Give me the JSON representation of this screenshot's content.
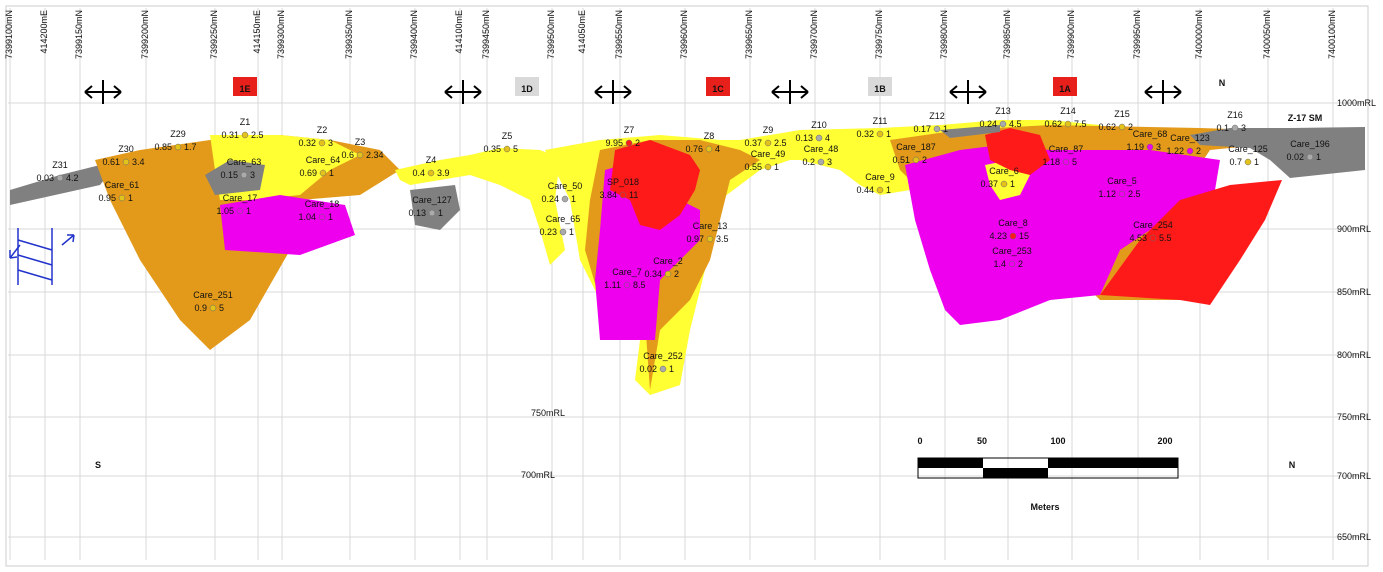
{
  "top_grid_labels": [
    "7399100mN",
    "414200mE",
    "7399150mN",
    "7399200mN",
    "7399250mN",
    "414150mE",
    "7399300mN",
    "7399350mN",
    "7399400mN",
    "414100mE",
    "7399450mN",
    "7399500mN",
    "414050mE",
    "7399550mN",
    "7399600mN",
    "7399650mN",
    "7399700mN",
    "7399750mN",
    "7399800mN",
    "7399850mN",
    "7399900mN",
    "7399950mN",
    "7400000mN",
    "7400050mN",
    "7400100mN"
  ],
  "zones": [
    "1E",
    "1D",
    "1C",
    "1B",
    "1A"
  ],
  "north_label": "N",
  "section_label": "Z-17 SM",
  "holes": [
    {
      "name": "Z31",
      "grade": 0.03,
      "width": 4.2
    },
    {
      "name": "Z30",
      "grade": 0.61,
      "width": 3.4
    },
    {
      "name": "Z29",
      "grade": 0.85,
      "width": 1.7
    },
    {
      "name": "Z1",
      "grade": 0.31,
      "width": 2.5
    },
    {
      "name": "Z2",
      "grade": 0.32,
      "width": 3
    },
    {
      "name": "Z3",
      "grade": 0.6,
      "width": 2.34
    },
    {
      "name": "Z4",
      "grade": 0.4,
      "width": 3.9
    },
    {
      "name": "Z5",
      "grade": 0.35,
      "width": 5
    },
    {
      "name": "Care_61",
      "grade": 0.95,
      "width": 1
    },
    {
      "name": "Care_63",
      "grade": 0.15,
      "width": 3
    },
    {
      "name": "Care_64",
      "grade": 0.69,
      "width": 1
    },
    {
      "name": "Care_17",
      "grade": 1.05,
      "width": 1
    },
    {
      "name": "Care_18",
      "grade": 1.04,
      "width": 1
    },
    {
      "name": "Care_127",
      "grade": 0.13,
      "width": 1
    },
    {
      "name": "Care_251",
      "grade": 0.9,
      "width": 5
    },
    {
      "name": "Care_50",
      "grade": 0.24,
      "width": 1
    },
    {
      "name": "Care_65",
      "grade": 0.23,
      "width": 1
    },
    {
      "name": "Care_252",
      "grade": 0.02,
      "width": 1
    },
    {
      "name": "Care_7",
      "grade": 1.11,
      "width": 8.5
    },
    {
      "name": "Care_13",
      "grade": 0.97,
      "width": 3.5
    },
    {
      "name": "Z8",
      "grade": 0.76,
      "width": 4
    },
    {
      "name": "Care_49",
      "grade": 0.55,
      "width": 1
    },
    {
      "name": "Z9",
      "grade": 0.37,
      "width": 2.5
    },
    {
      "name": "Z10",
      "grade": 0.13,
      "width": 4
    },
    {
      "name": "Care_48",
      "grade": 0.2,
      "width": 3
    },
    {
      "name": "Z11",
      "grade": 0.32,
      "width": 1
    },
    {
      "name": "Care_9",
      "grade": 0.44,
      "width": 1
    },
    {
      "name": "Care_187",
      "grade": 0.51,
      "width": 2
    },
    {
      "name": "Z12",
      "grade": 0.17,
      "width": 1
    },
    {
      "name": "Z13",
      "grade": 0.24,
      "width": 4.5
    },
    {
      "name": "Z14",
      "grade": 0.62,
      "width": 7.5
    },
    {
      "name": "Z15",
      "grade": 0.62,
      "width": 2
    },
    {
      "name": "Care_6",
      "grade": 0.37,
      "width": 1
    },
    {
      "name": "Care_87",
      "grade": 1.18,
      "width": 5
    },
    {
      "name": "Care_5",
      "grade": 1.12,
      "width": 2.5
    },
    {
      "name": "Care_68",
      "grade": 1.19,
      "width": 3
    },
    {
      "name": "Care_123",
      "grade": 1.22,
      "width": 2
    },
    {
      "name": "Care_125",
      "grade": 0.7,
      "width": 1
    },
    {
      "name": "Care_196",
      "grade": 0.02,
      "width": 1
    },
    {
      "name": "Z16",
      "grade": 0.1,
      "width": 3
    },
    {
      "name": "Care_8",
      "grade": 4.23,
      "width": 15
    },
    {
      "name": "Care_253",
      "grade": 1.4,
      "width": 2
    },
    {
      "name": "Care_254",
      "grade": 4.53,
      "width": 5.5
    },
    {
      "name": "Care_2",
      "grade": 0.34,
      "width": 2
    },
    {
      "name": "SP_018",
      "grade": 3.84,
      "width": 11
    },
    {
      "name": "Z7",
      "grade": 9.95,
      "width": 2
    }
  ],
  "elevations": [
    "1000mRL",
    "900mRL",
    "850mRL",
    "800mRL",
    "750mRL",
    "700mRL",
    "650mRL"
  ],
  "mid_elevations": [
    "750mRL",
    "700mRL"
  ],
  "scale": {
    "ticks": [
      0,
      50,
      100,
      200
    ],
    "unit": "Meters"
  },
  "ends": {
    "left": "S",
    "right": "N"
  }
}
